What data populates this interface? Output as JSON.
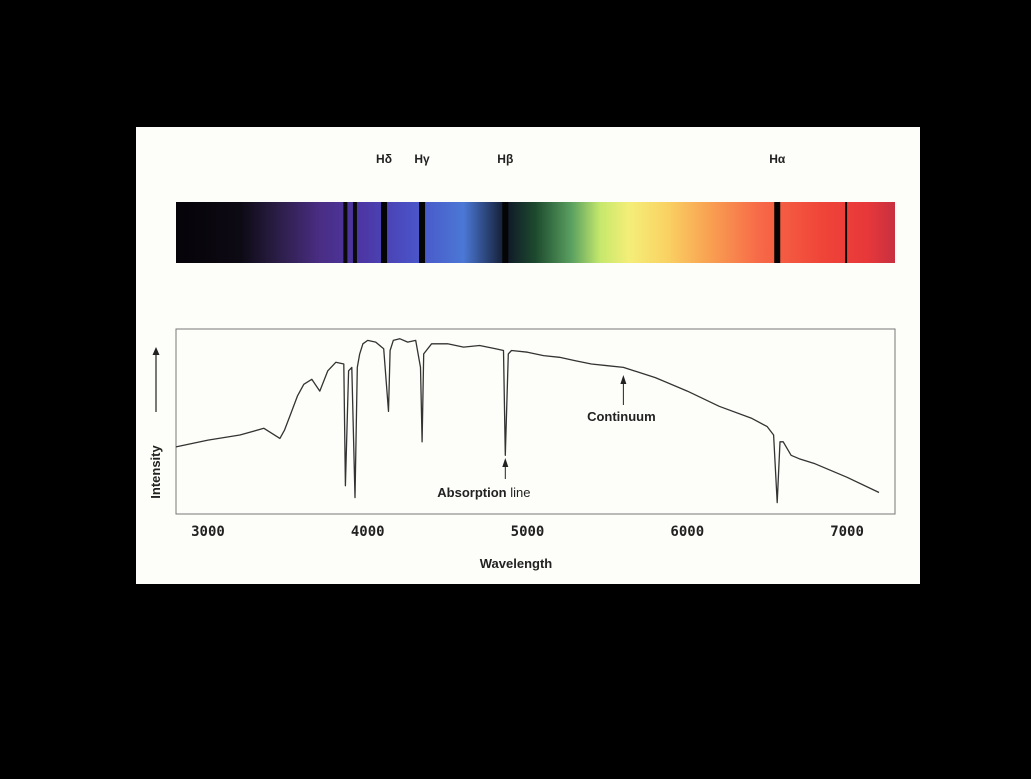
{
  "chart_data": {
    "type": "line",
    "title": "",
    "xlabel": "Wavelength",
    "ylabel": "Intensity",
    "xlim": [
      2800,
      7300
    ],
    "ylim": [
      0,
      1
    ],
    "x_ticks": [
      3000,
      4000,
      5000,
      6000,
      7000
    ],
    "x_tick_labels": [
      "3000",
      "4000",
      "5000",
      "6000",
      "7000"
    ],
    "grid": false,
    "series": [
      {
        "x": [
          2800,
          3000,
          3200,
          3350,
          3450,
          3480,
          3520,
          3560,
          3600,
          3650,
          3700,
          3750,
          3800,
          3850,
          3860,
          3880,
          3900,
          3920,
          3935,
          3950,
          3970,
          4000,
          4050,
          4100,
          4130,
          4140,
          4160,
          4200,
          4250,
          4300,
          4330,
          4340,
          4350,
          4400,
          4500,
          4600,
          4700,
          4800,
          4850,
          4861,
          4880,
          4900,
          5000,
          5100,
          5200,
          5300,
          5400,
          5500,
          5600,
          5800,
          6000,
          6200,
          6400,
          6500,
          6540,
          6563,
          6580,
          6600,
          6650,
          6700,
          6800,
          7000,
          7200
        ],
        "y": [
          0.35,
          0.39,
          0.42,
          0.46,
          0.4,
          0.45,
          0.55,
          0.65,
          0.72,
          0.75,
          0.68,
          0.8,
          0.85,
          0.84,
          0.12,
          0.8,
          0.82,
          0.05,
          0.82,
          0.9,
          0.96,
          0.98,
          0.97,
          0.93,
          0.56,
          0.92,
          0.98,
          0.99,
          0.97,
          0.98,
          0.82,
          0.38,
          0.9,
          0.96,
          0.96,
          0.94,
          0.95,
          0.93,
          0.92,
          0.3,
          0.9,
          0.92,
          0.91,
          0.89,
          0.88,
          0.86,
          0.84,
          0.83,
          0.82,
          0.76,
          0.68,
          0.59,
          0.52,
          0.47,
          0.42,
          0.02,
          0.38,
          0.38,
          0.3,
          0.28,
          0.25,
          0.17,
          0.08
        ]
      }
    ],
    "spectral_lines": [
      {
        "label": "Hδ",
        "wavelength": 4102
      },
      {
        "label": "Hγ",
        "wavelength": 4340
      },
      {
        "label": "Hβ",
        "wavelength": 4861
      },
      {
        "label": "Hα",
        "wavelength": 6563
      }
    ],
    "annotations": [
      {
        "label": "Continuum",
        "wavelength": 5600
      },
      {
        "label_bold": "Absorption",
        "label_rest": " line",
        "wavelength": 4861
      }
    ]
  },
  "colors": {
    "background": "#000000",
    "panel": "#fdfdf9",
    "curve": "#333333",
    "frame": "#777777"
  }
}
